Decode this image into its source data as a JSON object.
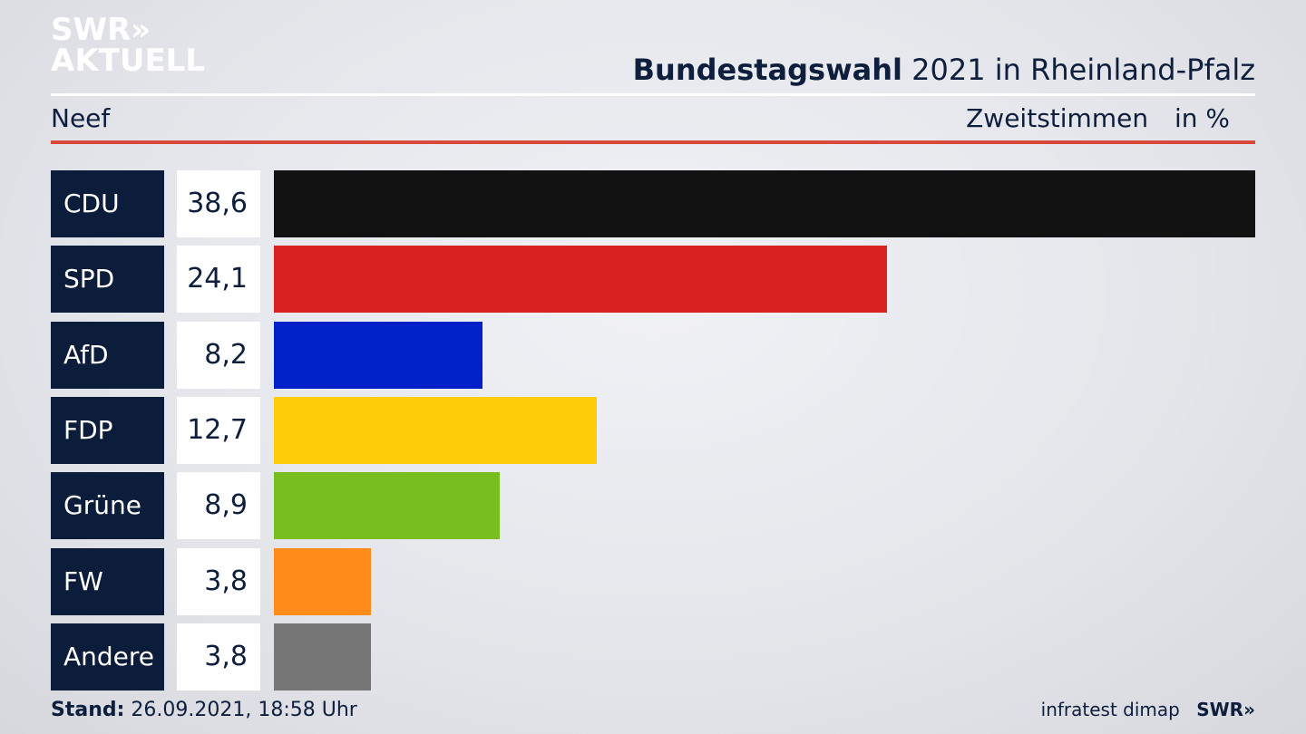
{
  "header": {
    "logo_line1": "SWR»",
    "logo_line2": "AKTUELL",
    "title_bold": "Bundestagswahl",
    "title_rest": "2021 in Rheinland-Pfalz",
    "region": "Neef",
    "vote_type": "Zweitstimmen",
    "unit": "in %"
  },
  "chart_data": {
    "type": "bar",
    "orientation": "horizontal",
    "categories": [
      "CDU",
      "SPD",
      "AfD",
      "FDP",
      "Grüne",
      "FW",
      "Andere"
    ],
    "values": [
      38.6,
      24.1,
      8.2,
      12.7,
      8.9,
      3.8,
      3.8
    ],
    "value_labels": [
      "38,6",
      "24,1",
      "8,2",
      "12,7",
      "8,9",
      "3,8",
      "3,8"
    ],
    "colors": [
      "#121212",
      "#d92121",
      "#0021c8",
      "#fdcd0a",
      "#78be1e",
      "#ff8c1a",
      "#767676"
    ],
    "xlim": [
      0,
      38.6
    ]
  },
  "footer": {
    "stand_label": "Stand:",
    "stand_value": "26.09.2021, 18:58 Uhr",
    "source": "infratest dimap",
    "brand": "SWR»"
  }
}
